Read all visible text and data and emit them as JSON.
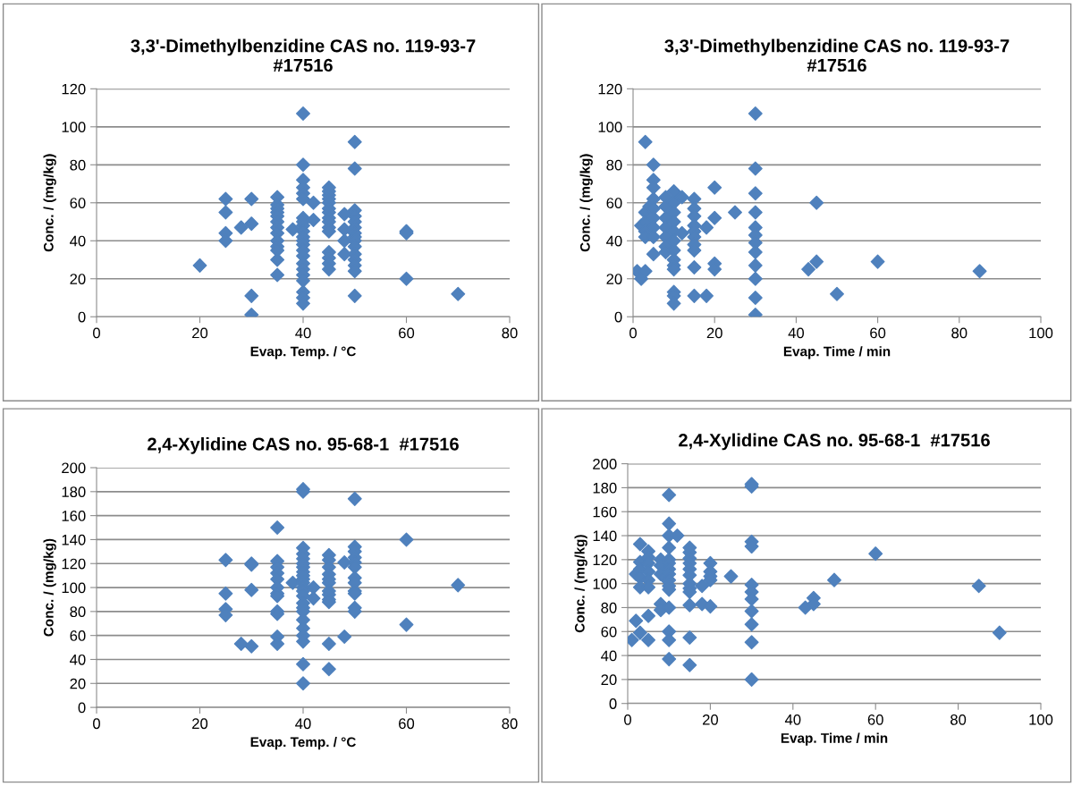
{
  "chart_data": [
    {
      "type": "scatter",
      "title": "3,3'-Dimethylbenzidine CAS no. 119-93-7\n#17516",
      "xlabel": "Evap. Temp. / °C",
      "ylabel": "Conc. / (mg/kg)",
      "xlim": [
        0,
        80
      ],
      "xticks": [
        0,
        20,
        40,
        60,
        80
      ],
      "ylim": [
        0,
        120
      ],
      "yticks": [
        0,
        20,
        40,
        60,
        80,
        100,
        120
      ],
      "grid": "y",
      "marker": "diamond",
      "legend": false,
      "series": [
        {
          "color": "#4f81bd",
          "x": [
            20,
            25,
            25,
            25,
            25,
            28,
            30,
            30,
            30,
            30,
            35,
            35,
            35,
            35,
            35,
            35,
            35,
            35,
            35,
            35,
            35,
            35,
            35,
            38,
            40,
            40,
            40,
            40,
            40,
            40,
            40,
            40,
            40,
            40,
            40,
            40,
            40,
            40,
            40,
            40,
            40,
            40,
            40,
            40,
            40,
            40,
            42,
            42,
            45,
            45,
            45,
            45,
            45,
            45,
            45,
            45,
            45,
            45,
            45,
            45,
            45,
            45,
            45,
            48,
            48,
            48,
            48,
            50,
            50,
            50,
            50,
            50,
            50,
            50,
            50,
            50,
            50,
            50,
            50,
            50,
            50,
            50,
            60,
            60,
            60,
            70
          ],
          "values": [
            27,
            62,
            55,
            44,
            40,
            47,
            62,
            49,
            11,
            1,
            63,
            59,
            57,
            55,
            53,
            50,
            47,
            44,
            40,
            37,
            35,
            30,
            22,
            46,
            107,
            80,
            72,
            68,
            65,
            62,
            52,
            50,
            48,
            45,
            42,
            40,
            38,
            35,
            32,
            28,
            25,
            22,
            19,
            13,
            10,
            7,
            60,
            51,
            68,
            66,
            64,
            62,
            60,
            57,
            55,
            52,
            50,
            47,
            45,
            34,
            31,
            28,
            25,
            54,
            46,
            40,
            33,
            92,
            78,
            56,
            53,
            50,
            47,
            44,
            42,
            40,
            37,
            33,
            30,
            27,
            24,
            11,
            45,
            44,
            20,
            12
          ]
        }
      ]
    },
    {
      "type": "scatter",
      "title": "3,3'-Dimethylbenzidine CAS no. 119-93-7\n#17516",
      "xlabel": "Evap. Time / min",
      "ylabel": "Conc. / (mg/kg)",
      "xlim": [
        0,
        100
      ],
      "xticks": [
        0,
        20,
        40,
        60,
        80,
        100
      ],
      "ylim": [
        0,
        120
      ],
      "yticks": [
        0,
        20,
        40,
        60,
        80,
        100,
        120
      ],
      "grid": "y",
      "marker": "diamond",
      "legend": false,
      "series": [
        {
          "color": "#4f81bd",
          "x": [
            1,
            2,
            2,
            3,
            3,
            3,
            3,
            3,
            3,
            4,
            5,
            5,
            5,
            5,
            5,
            5,
            5,
            5,
            5,
            8,
            8,
            8,
            8,
            8,
            8,
            8,
            10,
            10,
            10,
            10,
            10,
            10,
            10,
            10,
            10,
            10,
            10,
            10,
            10,
            12,
            12,
            15,
            15,
            15,
            15,
            15,
            15,
            15,
            15,
            15,
            15,
            18,
            18,
            20,
            20,
            20,
            20,
            25,
            30,
            30,
            30,
            30,
            30,
            30,
            30,
            30,
            30,
            30,
            30,
            30,
            43,
            45,
            45,
            50,
            60,
            85
          ],
          "values": [
            24,
            20,
            48,
            92,
            55,
            50,
            45,
            42,
            24,
            58,
            80,
            72,
            68,
            62,
            57,
            52,
            47,
            42,
            33,
            63,
            58,
            52,
            47,
            42,
            37,
            34,
            66,
            60,
            55,
            50,
            45,
            40,
            35,
            30,
            27,
            25,
            13,
            11,
            7,
            63,
            44,
            62,
            57,
            53,
            48,
            45,
            42,
            38,
            35,
            26,
            11,
            47,
            11,
            68,
            52,
            28,
            25,
            55,
            107,
            78,
            65,
            55,
            47,
            43,
            39,
            34,
            27,
            20,
            10,
            1,
            25,
            60,
            29,
            12,
            29,
            24
          ]
        }
      ]
    },
    {
      "type": "scatter",
      "title": "2,4-Xylidine CAS no. 95-68-1  #17516",
      "xlabel": "Evap. Temp. / °C",
      "ylabel": "Conc. / (mg/kg)",
      "xlim": [
        0,
        80
      ],
      "xticks": [
        0,
        20,
        40,
        60,
        80
      ],
      "ylim": [
        0,
        200
      ],
      "yticks": [
        0,
        20,
        40,
        60,
        80,
        100,
        120,
        140,
        160,
        180,
        200
      ],
      "grid": "y",
      "marker": "diamond",
      "legend": false,
      "series": [
        {
          "color": "#4f81bd",
          "x": [
            25,
            25,
            25,
            25,
            28,
            30,
            30,
            30,
            30,
            35,
            35,
            35,
            35,
            35,
            35,
            35,
            35,
            35,
            35,
            35,
            35,
            38,
            40,
            40,
            40,
            40,
            40,
            40,
            40,
            40,
            40,
            40,
            40,
            40,
            40,
            40,
            40,
            40,
            40,
            40,
            40,
            40,
            40,
            40,
            40,
            42,
            42,
            45,
            45,
            45,
            45,
            45,
            45,
            45,
            45,
            45,
            45,
            45,
            45,
            48,
            48,
            50,
            50,
            50,
            50,
            50,
            50,
            50,
            50,
            50,
            50,
            50,
            50,
            60,
            60,
            70
          ],
          "values": [
            123,
            95,
            82,
            77,
            53,
            120,
            119,
            98,
            51,
            150,
            122,
            117,
            112,
            107,
            100,
            95,
            93,
            80,
            78,
            59,
            53,
            104,
            182,
            180,
            133,
            128,
            124,
            120,
            117,
            113,
            110,
            107,
            104,
            100,
            97,
            93,
            87,
            83,
            80,
            73,
            66,
            60,
            55,
            36,
            20,
            100,
            91,
            127,
            123,
            117,
            111,
            107,
            104,
            97,
            94,
            90,
            88,
            53,
            32,
            121,
            59,
            174,
            134,
            130,
            125,
            121,
            117,
            108,
            104,
            97,
            95,
            83,
            80,
            140,
            69,
            102
          ]
        }
      ]
    },
    {
      "type": "scatter",
      "title": "2,4-Xylidine CAS no. 95-68-1  #17516",
      "xlabel": "Evap. Time / min",
      "ylabel": "Conc. / (mg/kg)",
      "xlim": [
        0,
        100
      ],
      "xticks": [
        0,
        20,
        40,
        60,
        80,
        100
      ],
      "ylim": [
        0,
        200
      ],
      "yticks": [
        0,
        20,
        40,
        60,
        80,
        100,
        120,
        140,
        160,
        180,
        200
      ],
      "grid": "y",
      "marker": "diamond",
      "legend": false,
      "series": [
        {
          "color": "#4f81bd",
          "x": [
            1,
            2,
            2,
            3,
            3,
            3,
            3,
            3,
            3,
            5,
            5,
            5,
            5,
            5,
            5,
            5,
            5,
            8,
            8,
            8,
            8,
            8,
            9,
            10,
            10,
            10,
            10,
            10,
            10,
            10,
            10,
            10,
            10,
            10,
            10,
            10,
            10,
            10,
            12,
            15,
            15,
            15,
            15,
            15,
            15,
            15,
            15,
            15,
            15,
            15,
            15,
            18,
            18,
            20,
            20,
            20,
            20,
            20,
            25,
            30,
            30,
            30,
            30,
            30,
            30,
            30,
            30,
            30,
            30,
            30,
            43,
            45,
            45,
            50,
            60,
            85,
            90
          ],
          "values": [
            53,
            69,
            108,
            133,
            59,
            118,
            112,
            105,
            97,
            127,
            122,
            117,
            110,
            103,
            97,
            73,
            53,
            120,
            115,
            108,
            83,
            78,
            105,
            174,
            150,
            140,
            130,
            120,
            117,
            112,
            108,
            103,
            98,
            95,
            80,
            60,
            53,
            37,
            140,
            130,
            126,
            121,
            117,
            112,
            107,
            100,
            96,
            93,
            82,
            55,
            32,
            98,
            83,
            117,
            110,
            106,
            103,
            81,
            106,
            183,
            181,
            135,
            131,
            99,
            93,
            87,
            77,
            66,
            51,
            20,
            80,
            88,
            83,
            103,
            125,
            98,
            59
          ]
        }
      ]
    }
  ]
}
